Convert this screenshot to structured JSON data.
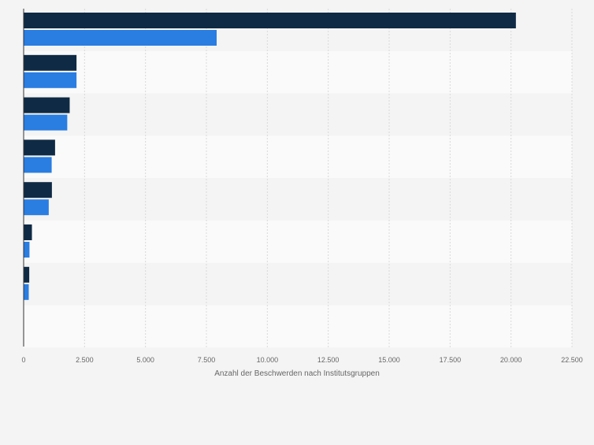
{
  "chart_data": {
    "type": "bar",
    "orientation": "horizontal",
    "categories": [
      "",
      "",
      "",
      "",
      "",
      "",
      "",
      ""
    ],
    "series": [
      {
        "color": "#0f2a44",
        "values": [
          20200,
          2170,
          1890,
          1290,
          1160,
          340,
          230,
          0
        ]
      },
      {
        "color": "#2a7de1",
        "values": [
          7920,
          2170,
          1790,
          1150,
          1030,
          240,
          210,
          0
        ]
      }
    ],
    "xlim": [
      0,
      22500
    ],
    "xticks": [
      0,
      2500,
      5000,
      7500,
      10000,
      12500,
      15000,
      17500,
      20000,
      22500
    ],
    "xtick_labels": [
      "0",
      "2.500",
      "5.000",
      "7.500",
      "10.000",
      "12.500",
      "15.000",
      "17.500",
      "20.000",
      "22.500"
    ],
    "xlabel": "Anzahl der Beschwerden nach Institutsgruppen",
    "grid": true,
    "legend": "none"
  }
}
